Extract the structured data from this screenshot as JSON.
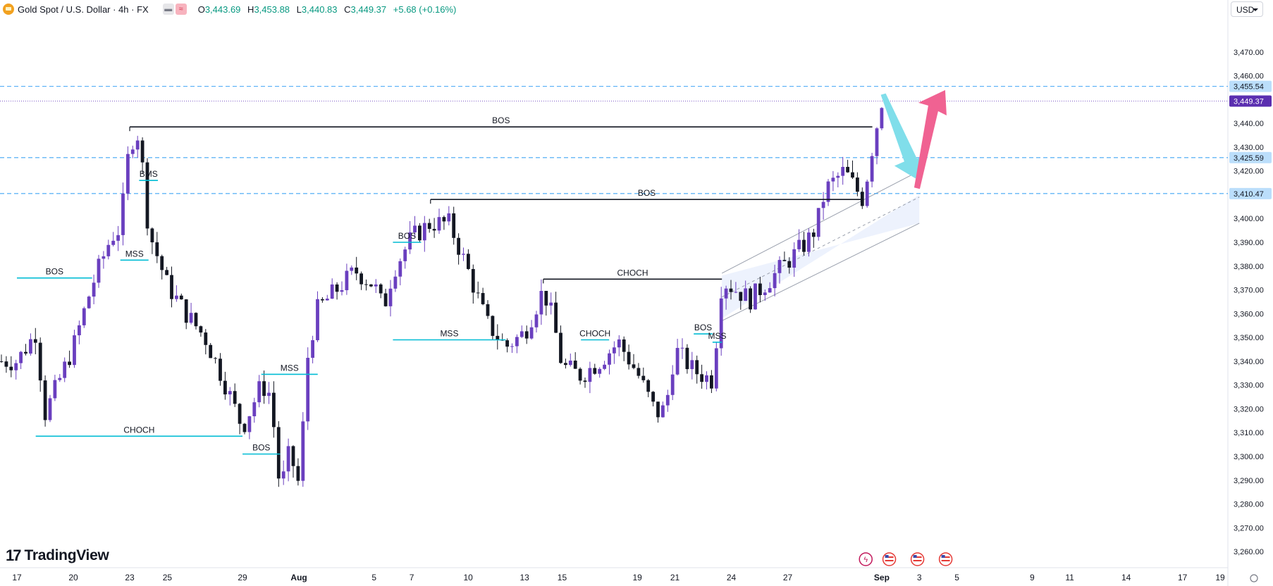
{
  "header": {
    "symbol": "Gold Spot / U.S. Dollar · 4h · FX",
    "ohlc": {
      "o_label": "O",
      "o": "3,443.69",
      "h_label": "H",
      "h": "3,453.88",
      "l_label": "L",
      "l": "3,440.83",
      "c_label": "C",
      "c": "3,449.37",
      "change": "+5.68 (+0.16%)"
    },
    "currency": "USD"
  },
  "branding": {
    "name": "TradingView",
    "mark": "17"
  },
  "colors": {
    "bull": "#6a3fbf",
    "bear": "#131722",
    "structure": "#00bcd4",
    "level": "#2962ff",
    "down_arrow": "#80deea",
    "up_arrow": "#f06292",
    "channel": "#2962ff"
  },
  "chart_data": {
    "type": "candlestick",
    "title": "Gold Spot / U.S. Dollar · 4h · FX",
    "ylim": [
      3255,
      3480
    ],
    "y_ticks": [
      3260,
      3270,
      3280,
      3290,
      3300,
      3310,
      3320,
      3330,
      3340,
      3350,
      3360,
      3370,
      3380,
      3390,
      3400,
      3410,
      3420,
      3430,
      3440,
      3450,
      3460,
      3470
    ],
    "y_tick_labels": [
      "3,260.00",
      "3,270.00",
      "3,280.00",
      "3,290.00",
      "3,300.00",
      "3,310.00",
      "3,320.00",
      "3,330.00",
      "3,340.00",
      "3,350.00",
      "3,360.00",
      "3,370.00",
      "3,380.00",
      "3,390.00",
      "3,400.00",
      "3,410.00",
      "3,420.00",
      "3,430.00",
      "3,440.00",
      "3,450.00",
      "3,460.00",
      "3,470.00"
    ],
    "x_ticks": [
      {
        "label": "17",
        "date": "2025-07-17"
      },
      {
        "label": "20",
        "date": "2025-07-20"
      },
      {
        "label": "23",
        "date": "2025-07-23"
      },
      {
        "label": "25",
        "date": "2025-07-25"
      },
      {
        "label": "29",
        "date": "2025-07-29"
      },
      {
        "label": "Aug",
        "date": "2025-08-01"
      },
      {
        "label": "5",
        "date": "2025-08-05"
      },
      {
        "label": "7",
        "date": "2025-08-07"
      },
      {
        "label": "10",
        "date": "2025-08-10"
      },
      {
        "label": "13",
        "date": "2025-08-13"
      },
      {
        "label": "15",
        "date": "2025-08-15"
      },
      {
        "label": "19",
        "date": "2025-08-19"
      },
      {
        "label": "21",
        "date": "2025-08-21"
      },
      {
        "label": "24",
        "date": "2025-08-24"
      },
      {
        "label": "27",
        "date": "2025-08-27"
      },
      {
        "label": "Sep",
        "date": "2025-09-01"
      },
      {
        "label": "3",
        "date": "2025-09-03"
      },
      {
        "label": "5",
        "date": "2025-09-05"
      },
      {
        "label": "9",
        "date": "2025-09-09"
      },
      {
        "label": "11",
        "date": "2025-09-11"
      },
      {
        "label": "14",
        "date": "2025-09-14"
      },
      {
        "label": "17",
        "date": "2025-09-17"
      },
      {
        "label": "19",
        "date": "2025-09-19"
      }
    ],
    "price_path": [
      {
        "date": "2025-07-17",
        "price": 3340
      },
      {
        "date": "2025-07-18",
        "price": 3352
      },
      {
        "date": "2025-07-18T12",
        "price": 3318
      },
      {
        "date": "2025-07-20",
        "price": 3346
      },
      {
        "date": "2025-07-21",
        "price": 3372
      },
      {
        "date": "2025-07-22",
        "price": 3392
      },
      {
        "date": "2025-07-22T12",
        "price": 3396
      },
      {
        "date": "2025-07-23",
        "price": 3432
      },
      {
        "date": "2025-07-23T12",
        "price": 3436
      },
      {
        "date": "2025-07-24",
        "price": 3395
      },
      {
        "date": "2025-07-25",
        "price": 3372
      },
      {
        "date": "2025-07-26",
        "price": 3360
      },
      {
        "date": "2025-07-27",
        "price": 3350
      },
      {
        "date": "2025-07-28",
        "price": 3332
      },
      {
        "date": "2025-07-29",
        "price": 3312
      },
      {
        "date": "2025-07-30",
        "price": 3330
      },
      {
        "date": "2025-07-30T12",
        "price": 3326
      },
      {
        "date": "2025-07-31",
        "price": 3285
      },
      {
        "date": "2025-07-31T12",
        "price": 3302
      },
      {
        "date": "2025-08-01",
        "price": 3288
      },
      {
        "date": "2025-08-01T12",
        "price": 3345
      },
      {
        "date": "2025-08-02",
        "price": 3362
      },
      {
        "date": "2025-08-04",
        "price": 3378
      },
      {
        "date": "2025-08-05",
        "price": 3372
      },
      {
        "date": "2025-08-05T12",
        "price": 3362
      },
      {
        "date": "2025-08-06",
        "price": 3378
      },
      {
        "date": "2025-08-07",
        "price": 3392
      },
      {
        "date": "2025-08-08",
        "price": 3398
      },
      {
        "date": "2025-08-09",
        "price": 3398
      },
      {
        "date": "2025-08-10",
        "price": 3378
      },
      {
        "date": "2025-08-11",
        "price": 3356
      },
      {
        "date": "2025-08-12",
        "price": 3346
      },
      {
        "date": "2025-08-13",
        "price": 3352
      },
      {
        "date": "2025-08-14",
        "price": 3370
      },
      {
        "date": "2025-08-14T12",
        "price": 3358
      },
      {
        "date": "2025-08-15",
        "price": 3338
      },
      {
        "date": "2025-08-16",
        "price": 3334
      },
      {
        "date": "2025-08-17",
        "price": 3340
      },
      {
        "date": "2025-08-18",
        "price": 3348
      },
      {
        "date": "2025-08-19",
        "price": 3335
      },
      {
        "date": "2025-08-20",
        "price": 3318
      },
      {
        "date": "2025-08-20T12",
        "price": 3320
      },
      {
        "date": "2025-08-21",
        "price": 3345
      },
      {
        "date": "2025-08-22",
        "price": 3336
      },
      {
        "date": "2025-08-23",
        "price": 3332
      },
      {
        "date": "2025-08-23T12",
        "price": 3374
      },
      {
        "date": "2025-08-25",
        "price": 3366
      },
      {
        "date": "2025-08-26",
        "price": 3374
      },
      {
        "date": "2025-08-27",
        "price": 3382
      },
      {
        "date": "2025-08-28",
        "price": 3390
      },
      {
        "date": "2025-08-28T12",
        "price": 3396
      },
      {
        "date": "2025-08-29",
        "price": 3412
      },
      {
        "date": "2025-08-30",
        "price": 3420
      },
      {
        "date": "2025-08-31",
        "price": 3408
      },
      {
        "date": "2025-08-31T12",
        "price": 3430
      },
      {
        "date": "2025-09-01",
        "price": 3449.37
      }
    ],
    "price_lines": [
      {
        "price": 3455.54,
        "label": "3,455.54",
        "style": "dashed"
      },
      {
        "price": 3449.37,
        "label": "3,449.37",
        "style": "dotted",
        "current": true
      },
      {
        "price": 3425.59,
        "label": "3,425.59",
        "style": "dashed"
      },
      {
        "price": 3410.47,
        "label": "3,410.47",
        "style": "dashed"
      }
    ],
    "annotations": [
      {
        "label": "BOS",
        "price": 3438.5,
        "from": "2025-07-23",
        "to": "2025-08-31T12",
        "color": "black"
      },
      {
        "label": "BOS",
        "price": 3408,
        "from": "2025-08-08",
        "to": "2025-08-31",
        "color": "black"
      },
      {
        "label": "CHOCH",
        "price": 3374.5,
        "from": "2025-08-14",
        "to": "2025-08-23T12",
        "color": "black"
      },
      {
        "label": "BMS",
        "price": 3416,
        "from": "2025-07-23T12",
        "to": "2025-07-24T12",
        "color": "cyan"
      },
      {
        "label": "MSS",
        "price": 3382.5,
        "from": "2025-07-22T12",
        "to": "2025-07-24",
        "color": "cyan"
      },
      {
        "label": "BOS",
        "price": 3375,
        "from": "2025-07-17",
        "to": "2025-07-21",
        "color": "cyan"
      },
      {
        "label": "CHOCH",
        "price": 3308.5,
        "from": "2025-07-18",
        "to": "2025-07-29",
        "color": "cyan"
      },
      {
        "label": "BOS",
        "price": 3301,
        "from": "2025-07-29",
        "to": "2025-07-31",
        "color": "cyan"
      },
      {
        "label": "MSS",
        "price": 3334.5,
        "from": "2025-07-30",
        "to": "2025-08-02",
        "color": "cyan"
      },
      {
        "label": "BOS",
        "price": 3390,
        "from": "2025-08-06",
        "to": "2025-08-07T12",
        "color": "cyan"
      },
      {
        "label": "MSS",
        "price": 3349,
        "from": "2025-08-06",
        "to": "2025-08-12",
        "color": "cyan"
      },
      {
        "label": "CHOCH",
        "price": 3349,
        "from": "2025-08-16",
        "to": "2025-08-17T12",
        "color": "cyan"
      },
      {
        "label": "BOS",
        "price": 3351.5,
        "from": "2025-08-22",
        "to": "2025-08-23",
        "color": "cyan"
      },
      {
        "label": "MSS",
        "price": 3348,
        "from": "2025-08-23",
        "to": "2025-08-23T12",
        "color": "cyan"
      }
    ]
  }
}
